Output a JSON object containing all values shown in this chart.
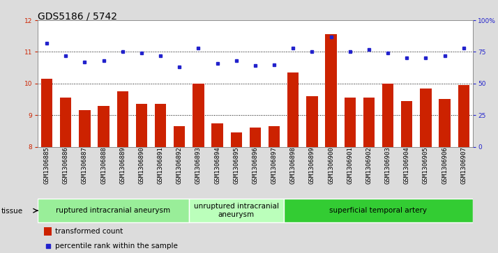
{
  "title": "GDS5186 / 5742",
  "samples": [
    "GSM1306885",
    "GSM1306886",
    "GSM1306887",
    "GSM1306888",
    "GSM1306889",
    "GSM1306890",
    "GSM1306891",
    "GSM1306892",
    "GSM1306893",
    "GSM1306894",
    "GSM1306895",
    "GSM1306896",
    "GSM1306897",
    "GSM1306898",
    "GSM1306899",
    "GSM1306900",
    "GSM1306901",
    "GSM1306902",
    "GSM1306903",
    "GSM1306904",
    "GSM1306905",
    "GSM1306906",
    "GSM1306907"
  ],
  "bar_values": [
    10.15,
    9.55,
    9.15,
    9.3,
    9.75,
    9.35,
    9.35,
    8.65,
    10.0,
    8.75,
    8.45,
    8.6,
    8.65,
    10.35,
    9.6,
    11.55,
    9.55,
    9.55,
    10.0,
    9.45,
    9.85,
    9.5,
    9.95
  ],
  "dot_values": [
    82,
    72,
    67,
    68,
    75,
    74,
    72,
    63,
    78,
    66,
    68,
    64,
    65,
    78,
    75,
    87,
    75,
    77,
    74,
    70,
    70,
    72,
    78
  ],
  "ylim_left": [
    8,
    12
  ],
  "ylim_right": [
    0,
    100
  ],
  "yticks_left": [
    8,
    9,
    10,
    11,
    12
  ],
  "yticks_right": [
    0,
    25,
    50,
    75,
    100
  ],
  "ytick_labels_right": [
    "0",
    "25",
    "50",
    "75",
    "100%"
  ],
  "bar_color": "#cc2200",
  "dot_color": "#2222cc",
  "fig_bg": "#dcdcdc",
  "plot_bg": "#ffffff",
  "groups": [
    {
      "label": "ruptured intracranial aneurysm",
      "start": 0,
      "end": 8,
      "color": "#99ee99"
    },
    {
      "label": "unruptured intracranial\naneurysm",
      "start": 8,
      "end": 13,
      "color": "#bbffbb"
    },
    {
      "label": "superficial temporal artery",
      "start": 13,
      "end": 23,
      "color": "#33cc33"
    }
  ],
  "tissue_label": "tissue",
  "legend_bar_label": "transformed count",
  "legend_dot_label": "percentile rank within the sample",
  "title_fontsize": 10,
  "tick_fontsize": 6.5,
  "group_fontsize": 7.5
}
